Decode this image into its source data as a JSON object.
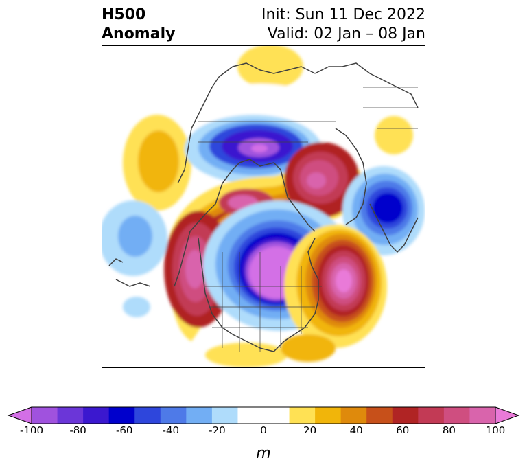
{
  "header": {
    "title_line1": "H500",
    "title_line2": "Anomaly",
    "init_text": "Init: Sun 11 Dec 2022",
    "valid_text": "Valid: 02 Jan – 08 Jan"
  },
  "colorbar": {
    "colors": [
      "#d36fe6",
      "#a052de",
      "#6b36d8",
      "#3b18cf",
      "#0000cc",
      "#2e46dc",
      "#4e7ae8",
      "#72aef4",
      "#afdcfb",
      "#ffffff",
      "#ffffff",
      "#ffe154",
      "#f1b50a",
      "#df8a0c",
      "#c7501a",
      "#b02424",
      "#c23a55",
      "#cf4e80",
      "#d964ac",
      "#e97ad8"
    ],
    "ticks": [
      "-100",
      "-80",
      "-60",
      "-40",
      "-20",
      "0",
      "20",
      "40",
      "60",
      "80",
      "100"
    ],
    "unit": "m"
  },
  "map": {
    "anomaly_palette": {
      "n100": "#d36fe6",
      "n80": "#a052de",
      "n60": "#3b18cf",
      "n40": "#2e46dc",
      "n20": "#72aef4",
      "n10": "#afdcfb",
      "p10": "#ffe154",
      "p20": "#f1b50a",
      "p30": "#df8a0c",
      "p40": "#c7501a",
      "p50": "#b02424",
      "p60": "#c23a55",
      "p70": "#cf4e80",
      "p80": "#d964ac",
      "p100": "#e97ad8"
    },
    "coastline_color": "#404040"
  }
}
